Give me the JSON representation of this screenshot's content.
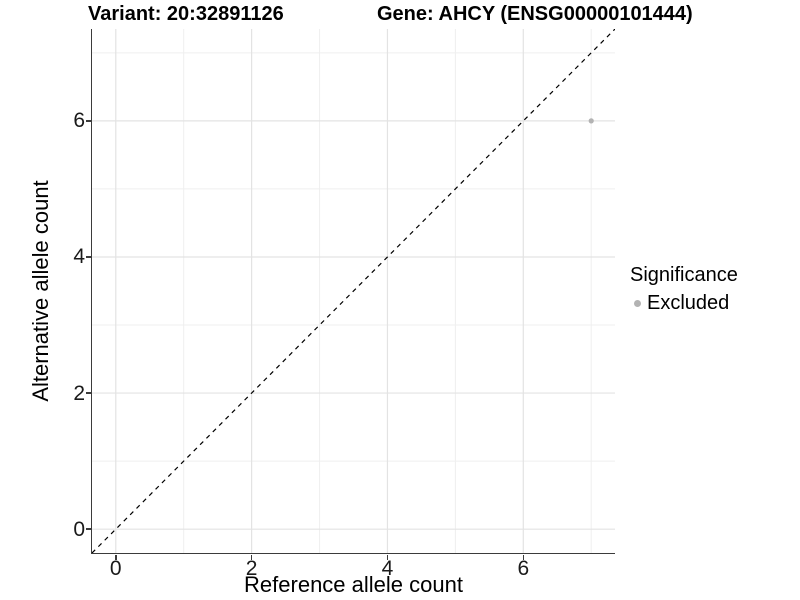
{
  "figure": {
    "title_left": "Variant: 20:32891126",
    "title_right": "Gene: AHCY (ENSG00000101444)"
  },
  "axes": {
    "x_label": "Reference allele count",
    "y_label": "Alternative allele count"
  },
  "legend": {
    "title": "Significance",
    "items": [
      {
        "label": "Excluded",
        "color": "#b3b3b3"
      }
    ]
  },
  "chart_data": {
    "type": "scatter",
    "title": "Variant: 20:32891126 — Gene: AHCY (ENSG00000101444)",
    "xlabel": "Reference allele count",
    "ylabel": "Alternative allele count",
    "xlim": [
      -0.35,
      7.35
    ],
    "ylim": [
      -0.35,
      7.35
    ],
    "x_ticks": [
      0,
      2,
      4,
      6
    ],
    "y_ticks": [
      0,
      2,
      4,
      6
    ],
    "x_minor_gridlines": [
      1,
      3,
      5,
      7
    ],
    "y_minor_gridlines": [
      1,
      3,
      5,
      7
    ],
    "grid": "major+minor",
    "legend_position": "right",
    "reference_line": {
      "type": "identity",
      "equation": "y = x",
      "style": "dashed",
      "color": "#000000"
    },
    "series": [
      {
        "name": "Excluded",
        "marker": "circle",
        "color": "#b3b3b3",
        "points": [
          [
            7,
            6
          ]
        ]
      }
    ]
  },
  "colors": {
    "background": "#ffffff",
    "grid_major": "#e3e3e3",
    "grid_minor": "#efefef",
    "axis_line": "#3b3b3b",
    "tick_text": "#1a1a1a",
    "point": "#b3b3b3"
  }
}
